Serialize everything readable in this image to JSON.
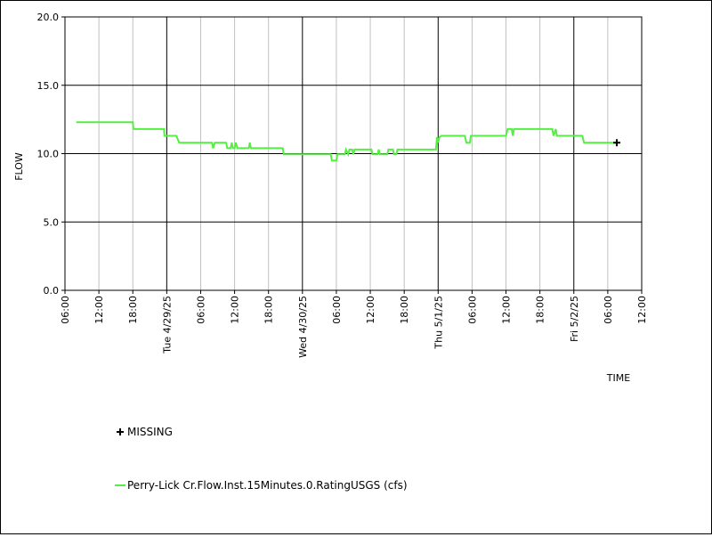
{
  "chart_data": {
    "type": "line",
    "ylabel": "FLOW",
    "xlabel": "TIME",
    "ylim": [
      0,
      20
    ],
    "y_ticks": [
      "0.0",
      "5.0",
      "10.0",
      "15.0",
      "20.0"
    ],
    "y_tick_values": [
      0,
      5,
      10,
      15,
      20
    ],
    "xlim_hours": [
      0,
      102
    ],
    "x_ticks": [
      {
        "h": 0,
        "label": "06:00",
        "major": false
      },
      {
        "h": 6,
        "label": "12:00",
        "major": false
      },
      {
        "h": 12,
        "label": "18:00",
        "major": false
      },
      {
        "h": 18,
        "label": "Tue 4/29/25",
        "major": true
      },
      {
        "h": 24,
        "label": "06:00",
        "major": false
      },
      {
        "h": 30,
        "label": "12:00",
        "major": false
      },
      {
        "h": 36,
        "label": "18:00",
        "major": false
      },
      {
        "h": 42,
        "label": "Wed 4/30/25",
        "major": true
      },
      {
        "h": 48,
        "label": "06:00",
        "major": false
      },
      {
        "h": 54,
        "label": "12:00",
        "major": false
      },
      {
        "h": 60,
        "label": "18:00",
        "major": false
      },
      {
        "h": 66,
        "label": "Thu 5/1/25",
        "major": true
      },
      {
        "h": 72,
        "label": "06:00",
        "major": false
      },
      {
        "h": 78,
        "label": "12:00",
        "major": false
      },
      {
        "h": 84,
        "label": "18:00",
        "major": false
      },
      {
        "h": 90,
        "label": "Fri 5/2/25",
        "major": true
      },
      {
        "h": 96,
        "label": "06:00",
        "major": false
      },
      {
        "h": 102,
        "label": "12:00",
        "major": false
      }
    ],
    "grid": true,
    "series": [
      {
        "name": "Perry-Lick Cr.Flow.Inst.15Minutes.0.RatingUSGS (cfs)",
        "color": "#55ee44",
        "points": [
          [
            2,
            12.3
          ],
          [
            12,
            12.3
          ],
          [
            12.1,
            11.8
          ],
          [
            17.5,
            11.8
          ],
          [
            17.6,
            11.3
          ],
          [
            19.7,
            11.3
          ],
          [
            20.2,
            10.8
          ],
          [
            26,
            10.8
          ],
          [
            26.2,
            10.4
          ],
          [
            26.5,
            10.8
          ],
          [
            28.5,
            10.8
          ],
          [
            28.7,
            10.4
          ],
          [
            29.3,
            10.4
          ],
          [
            29.5,
            10.8
          ],
          [
            29.7,
            10.4
          ],
          [
            30,
            10.4
          ],
          [
            30.2,
            10.8
          ],
          [
            30.5,
            10.4
          ],
          [
            32.5,
            10.4
          ],
          [
            32.7,
            10.8
          ],
          [
            32.9,
            10.4
          ],
          [
            38.5,
            10.4
          ],
          [
            38.7,
            9.95
          ],
          [
            47,
            9.95
          ],
          [
            47.2,
            9.5
          ],
          [
            48,
            9.5
          ],
          [
            48.2,
            9.95
          ],
          [
            49.5,
            9.95
          ],
          [
            49.7,
            10.3
          ],
          [
            50.1,
            9.95
          ],
          [
            50.3,
            10.3
          ],
          [
            50.8,
            10.3
          ],
          [
            51,
            9.95
          ],
          [
            51.2,
            10.3
          ],
          [
            54.2,
            10.3
          ],
          [
            54.4,
            9.95
          ],
          [
            55.3,
            9.95
          ],
          [
            55.5,
            10.3
          ],
          [
            55.7,
            9.95
          ],
          [
            57,
            9.95
          ],
          [
            57.2,
            10.3
          ],
          [
            58,
            10.3
          ],
          [
            58.2,
            9.95
          ],
          [
            58.6,
            9.95
          ],
          [
            58.8,
            10.3
          ],
          [
            65.6,
            10.3
          ],
          [
            65.8,
            11.2
          ],
          [
            66,
            10.8
          ],
          [
            66.2,
            11.2
          ],
          [
            66.6,
            11.3
          ],
          [
            70.7,
            11.3
          ],
          [
            71,
            10.8
          ],
          [
            71.6,
            10.8
          ],
          [
            71.8,
            11.3
          ],
          [
            78,
            11.3
          ],
          [
            78.3,
            11.8
          ],
          [
            79,
            11.8
          ],
          [
            79.2,
            11.3
          ],
          [
            79.4,
            11.8
          ],
          [
            86.2,
            11.8
          ],
          [
            86.4,
            11.3
          ],
          [
            86.8,
            11.8
          ],
          [
            87,
            11.3
          ],
          [
            91.5,
            11.3
          ],
          [
            91.8,
            10.8
          ],
          [
            97.6,
            10.8
          ]
        ]
      }
    ],
    "missing_points": [
      [
        97.6,
        10.8
      ]
    ],
    "legend": [
      {
        "symbol": "plus",
        "label": "MISSING",
        "color": "#000000"
      },
      {
        "symbol": "line",
        "label": "Perry-Lick Cr.Flow.Inst.15Minutes.0.RatingUSGS (cfs)",
        "color": "#55ee44"
      }
    ]
  }
}
